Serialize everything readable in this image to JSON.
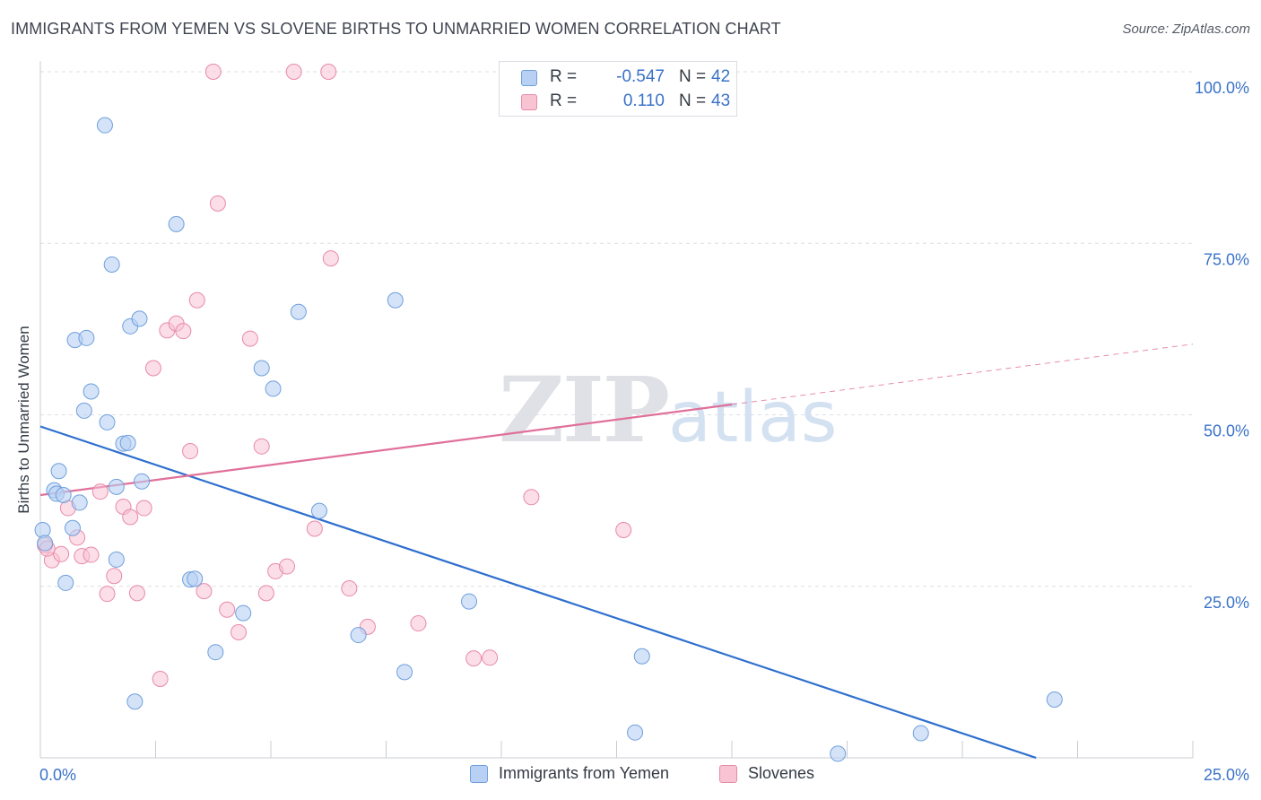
{
  "header": {
    "title": "IMMIGRANTS FROM YEMEN VS SLOVENE BIRTHS TO UNMARRIED WOMEN CORRELATION CHART",
    "source": "Source: ZipAtlas.com"
  },
  "watermark": {
    "zip": "ZIP",
    "atlas": "atlas"
  },
  "legend": {
    "rows": [
      {
        "r_label": "R =",
        "r_value": "-0.547",
        "n_label": "N =",
        "n_value": "42",
        "swatch_fill": "#b7d0f3",
        "swatch_stroke": "#6f9fdc"
      },
      {
        "r_label": "R =",
        "r_value": "0.110",
        "n_label": "N =",
        "n_value": "43",
        "swatch_fill": "#f8c3d3",
        "swatch_stroke": "#e88aa8"
      }
    ]
  },
  "bottom_legend": {
    "yemen": "Immigrants from Yemen",
    "slovenes": "Slovenes"
  },
  "chart_data": {
    "type": "scatter",
    "title": "IMMIGRANTS FROM YEMEN VS SLOVENE BIRTHS TO UNMARRIED WOMEN CORRELATION CHART",
    "xlabel": "",
    "ylabel": "Births to Unmarried Women",
    "xlim": [
      0,
      25
    ],
    "ylim": [
      0,
      100
    ],
    "x_tick_labels": [
      "0.0%",
      "25.0%"
    ],
    "y_tick_labels": [
      "25.0%",
      "50.0%",
      "75.0%",
      "100.0%"
    ],
    "y_ticks": [
      25,
      50,
      75,
      100
    ],
    "grid": true,
    "legend_position": "top-center",
    "colors": {
      "yemen_fill": "#b7d0f3",
      "yemen_stroke": "#6f9fdc",
      "yemen_line": "#2e6fce",
      "slovene_fill": "#f8c3d3",
      "slovene_stroke": "#e88aa8",
      "slovene_line": "#e0709a",
      "tick_label": "#3a72c8"
    },
    "series": [
      {
        "name": "Immigrants from Yemen",
        "points": [
          [
            0.05,
            33.2
          ],
          [
            0.1,
            31.3
          ],
          [
            0.3,
            39.0
          ],
          [
            0.35,
            38.5
          ],
          [
            0.4,
            41.8
          ],
          [
            0.5,
            38.3
          ],
          [
            0.55,
            25.5
          ],
          [
            0.7,
            33.5
          ],
          [
            0.75,
            60.9
          ],
          [
            0.85,
            37.2
          ],
          [
            0.95,
            50.6
          ],
          [
            1.0,
            61.2
          ],
          [
            1.1,
            53.4
          ],
          [
            1.4,
            92.2
          ],
          [
            1.45,
            48.9
          ],
          [
            1.55,
            71.9
          ],
          [
            1.65,
            39.5
          ],
          [
            1.65,
            28.9
          ],
          [
            1.8,
            45.8
          ],
          [
            1.9,
            45.9
          ],
          [
            1.95,
            62.9
          ],
          [
            2.05,
            8.2
          ],
          [
            2.15,
            64.0
          ],
          [
            2.2,
            40.3
          ],
          [
            2.95,
            77.8
          ],
          [
            3.25,
            26.0
          ],
          [
            3.35,
            26.1
          ],
          [
            3.8,
            15.4
          ],
          [
            4.4,
            21.1
          ],
          [
            4.8,
            56.8
          ],
          [
            5.05,
            53.8
          ],
          [
            5.6,
            65.0
          ],
          [
            6.05,
            36.0
          ],
          [
            6.9,
            17.9
          ],
          [
            7.7,
            66.7
          ],
          [
            7.9,
            12.5
          ],
          [
            9.3,
            22.8
          ],
          [
            12.9,
            3.7
          ],
          [
            13.05,
            14.8
          ],
          [
            17.3,
            0.6
          ],
          [
            19.1,
            3.6
          ],
          [
            22.0,
            8.5
          ]
        ],
        "trend": {
          "x": [
            0,
            21.6
          ],
          "y": [
            48.3,
            0
          ]
        }
      },
      {
        "name": "Slovenes",
        "points": [
          [
            0.1,
            31.0
          ],
          [
            0.25,
            28.8
          ],
          [
            0.45,
            29.7
          ],
          [
            0.6,
            36.4
          ],
          [
            0.8,
            32.1
          ],
          [
            0.9,
            29.4
          ],
          [
            1.1,
            29.6
          ],
          [
            1.3,
            38.8
          ],
          [
            1.45,
            23.9
          ],
          [
            1.6,
            26.5
          ],
          [
            1.8,
            36.6
          ],
          [
            1.95,
            35.1
          ],
          [
            2.1,
            24.0
          ],
          [
            2.25,
            36.4
          ],
          [
            2.45,
            56.8
          ],
          [
            2.6,
            11.5
          ],
          [
            2.75,
            62.3
          ],
          [
            2.95,
            63.3
          ],
          [
            3.1,
            62.2
          ],
          [
            3.25,
            44.7
          ],
          [
            3.4,
            66.7
          ],
          [
            3.55,
            24.3
          ],
          [
            3.85,
            80.8
          ],
          [
            4.05,
            21.6
          ],
          [
            4.3,
            18.3
          ],
          [
            4.55,
            61.1
          ],
          [
            4.8,
            45.4
          ],
          [
            4.9,
            24.0
          ],
          [
            5.1,
            27.2
          ],
          [
            5.35,
            27.9
          ],
          [
            5.95,
            33.4
          ],
          [
            6.3,
            72.8
          ],
          [
            3.75,
            100.0
          ],
          [
            5.5,
            100.0
          ],
          [
            6.25,
            100.0
          ],
          [
            6.7,
            24.7
          ],
          [
            7.1,
            19.1
          ],
          [
            8.2,
            19.6
          ],
          [
            9.4,
            14.5
          ],
          [
            9.75,
            14.6
          ],
          [
            10.65,
            38.0
          ],
          [
            12.65,
            33.2
          ],
          [
            0.15,
            30.5
          ]
        ],
        "trend": {
          "x": [
            0,
            15
          ],
          "y": [
            38.3,
            51.5
          ]
        },
        "trend_extension": {
          "x": [
            15,
            25
          ],
          "y": [
            51.5,
            60.3
          ]
        }
      }
    ]
  }
}
